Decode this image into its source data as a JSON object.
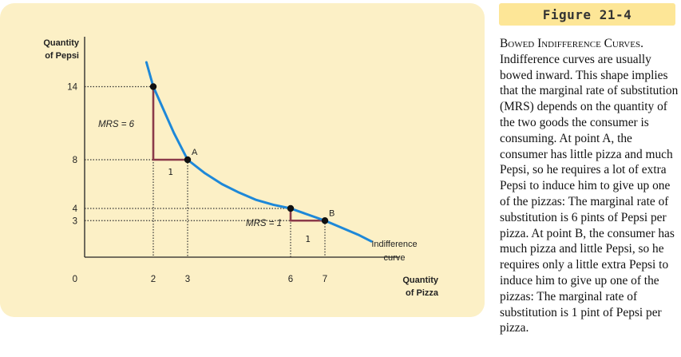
{
  "figure": {
    "label": "Figure 21-4",
    "caption_title": "Bowed Indifference Curves.",
    "caption_body": "Indifference curves are usually bowed inward. This shape implies that the marginal rate of substitution (MRS) depends on the quantity of the two goods the consumer is consuming. At point A, the consumer has little pizza and much Pepsi, so he requires a lot of extra Pepsi to induce him to give up one of the pizzas: The marginal rate of substitution is 6 pints of Pepsi per pizza. At point B, the consumer has much pizza and little Pepsi, so he requires only a little extra Pepsi to induce him to give up one of the pizzas: The marginal rate of substitution is 1 pint of Pepsi per pizza."
  },
  "chart_data": {
    "type": "line",
    "ylabel_line1": "Quantity",
    "ylabel_line2": "of Pepsi",
    "xlabel_line1": "Quantity",
    "xlabel_line2": "of Pizza",
    "origin_label": "0",
    "x_ticks": [
      "2",
      "3",
      "6",
      "7"
    ],
    "y_ticks": [
      "14",
      "8",
      "4",
      "3"
    ],
    "series": [
      {
        "curve_label_line1": "Indifference",
        "curve_label_line2": "curve",
        "x": [
          1.8,
          2,
          2.3,
          2.6,
          3,
          3.5,
          4,
          4.5,
          5,
          5.5,
          6,
          6.5,
          7,
          7.5,
          8,
          8.35
        ],
        "y": [
          16,
          14,
          12.1,
          10.2,
          8,
          6.9,
          6,
          5.3,
          4.7,
          4.3,
          4,
          3.5,
          3,
          2.4,
          1.8,
          1.3
        ]
      }
    ],
    "points": [
      {
        "x": 2,
        "y": 14,
        "label": ""
      },
      {
        "x": 3,
        "y": 8,
        "label": "A"
      },
      {
        "x": 6,
        "y": 4,
        "label": ""
      },
      {
        "x": 7,
        "y": 3,
        "label": "B"
      }
    ],
    "mrs_labels": [
      "MRS = 6",
      "MRS = 1"
    ],
    "step_label": "1",
    "colors": {
      "curve": "#1e88d8",
      "triangle": "#8b3a4a",
      "panel": "#fcf0c6",
      "title_bar": "#fde697"
    }
  }
}
